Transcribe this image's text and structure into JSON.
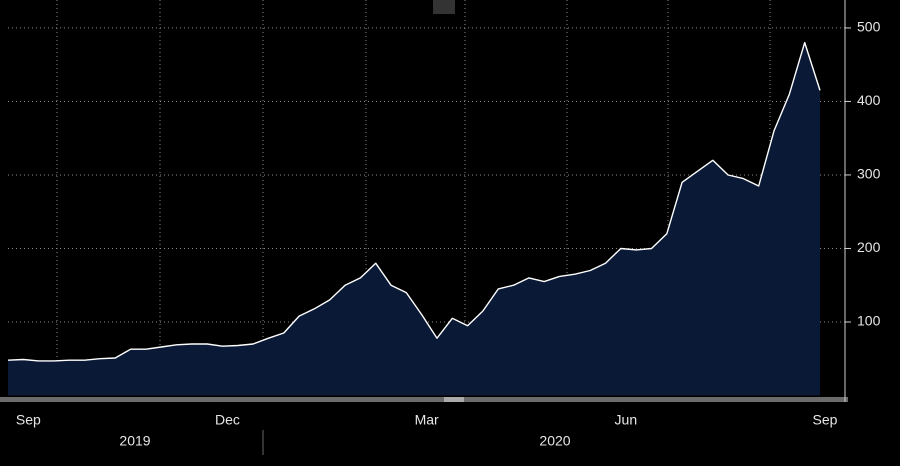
{
  "chart_data": {
    "type": "area",
    "categories": [
      null,
      "Sep",
      null,
      null,
      null,
      null,
      null,
      null,
      null,
      null,
      null,
      null,
      null,
      null,
      "Dec",
      null,
      null,
      null,
      null,
      null,
      null,
      null,
      null,
      null,
      null,
      null,
      null,
      "Mar",
      null,
      null,
      null,
      null,
      null,
      null,
      null,
      null,
      null,
      null,
      null,
      null,
      "Jun",
      null,
      null,
      null,
      null,
      null,
      null,
      null,
      null,
      null,
      null,
      null,
      null,
      "Sep"
    ],
    "values": [
      48,
      49,
      47,
      47,
      48,
      48,
      50,
      51,
      63,
      63,
      66,
      69,
      70,
      70,
      67,
      68,
      70,
      78,
      85,
      108,
      118,
      130,
      150,
      160,
      180,
      150,
      140,
      110,
      78,
      105,
      95,
      115,
      145,
      150,
      160,
      155,
      162,
      165,
      170,
      180,
      200,
      198,
      200,
      220,
      290,
      305,
      320,
      300,
      295,
      285,
      360,
      410,
      480,
      415
    ],
    "years": [
      "2019",
      "2020"
    ],
    "color": "#ffffff",
    "fill": "#0a1a36",
    "ylim": [
      0,
      538
    ],
    "yticks": [
      100,
      200,
      300,
      400,
      500
    ],
    "grid": true
  }
}
